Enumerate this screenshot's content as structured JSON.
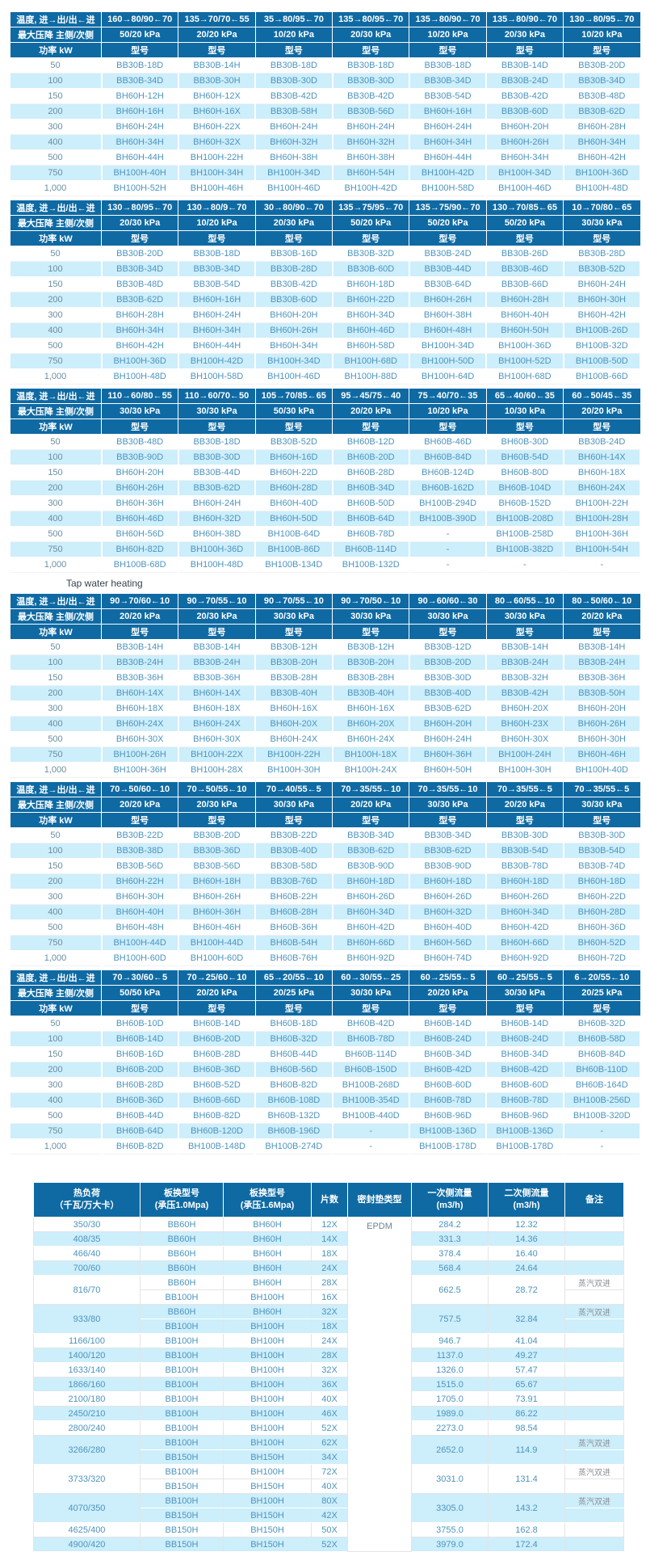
{
  "colors": {
    "header_bg": "#0f6aa3",
    "stripe": "#cdeefb",
    "model_text": "#4d94bd",
    "power_text": "#698ea2",
    "note_text": "#8b9196",
    "header_text": "#ffffff"
  },
  "labels": {
    "temp": "温度, 进→出/出←进",
    "pressure": "最大压降 主侧/次侧",
    "power": "功率 kW",
    "model": "型号",
    "tap_water": "Tap water heating"
  },
  "powers": [
    "50",
    "100",
    "150",
    "200",
    "300",
    "400",
    "500",
    "750",
    "1,000"
  ],
  "spec_tables": [
    {
      "temps": [
        "160→80/90←70",
        "135→70/70←55",
        "35→80/95←70",
        "135→80/95←70",
        "135→80/90←70",
        "135→80/90←70",
        "130→80/95←70"
      ],
      "pressures": [
        "50/20 kPa",
        "20/20 kPa",
        "10/20 kPa",
        "20/30 kPa",
        "10/20 kPa",
        "20/30 kPa",
        "10/20 kPa"
      ],
      "rows": [
        [
          "BB30B-18D",
          "BB30B-14H",
          "BB30B-18D",
          "BB30B-18D",
          "BB30B-18D",
          "BB30B-14D",
          "BB30B-20D"
        ],
        [
          "BB30B-34D",
          "BB30B-30H",
          "BB30B-30D",
          "BB30B-30D",
          "BB30B-34D",
          "BB30B-24D",
          "BB30B-34D"
        ],
        [
          "BH60H-12H",
          "BH60H-12X",
          "BB30B-42D",
          "BB30B-42D",
          "BB30B-54D",
          "BB30B-42D",
          "BB30B-48D"
        ],
        [
          "BH60H-16H",
          "BH60H-16X",
          "BB30B-58H",
          "BB30B-56D",
          "BH60H-16H",
          "BB30B-60D",
          "BB30B-62D"
        ],
        [
          "BH60H-24H",
          "BH60H-22X",
          "BH60H-24H",
          "BH60H-24H",
          "BH60H-24H",
          "BH60H-20H",
          "BH60H-28H"
        ],
        [
          "BH60H-34H",
          "BH60H-32X",
          "BH60H-32H",
          "BH60H-32H",
          "BH60H-34H",
          "BH60H-26H",
          "BH60H-34H"
        ],
        [
          "BH60H-44H",
          "BH100H-22H",
          "BH60H-38H",
          "BH60H-38H",
          "BH60H-44H",
          "BH60H-34H",
          "BH60H-42H"
        ],
        [
          "BH100H-40H",
          "BH100H-34H",
          "BH100H-34D",
          "BH60H-54H",
          "BH100H-42D",
          "BH100H-34D",
          "BH100H-36D"
        ],
        [
          "BH100H-52H",
          "BH100H-46H",
          "BH100H-46D",
          "BH100H-42D",
          "BH100H-58D",
          "BH100H-46D",
          "BH100H-48D"
        ]
      ]
    },
    {
      "temps": [
        "130→80/95←70",
        "130→80/9←70",
        "30→80/90←70",
        "135→75/95←70",
        "135→75/90←70",
        "130→70/85←65",
        "10→70/80←65"
      ],
      "pressures": [
        "20/30 kPa",
        "10/20 kPa",
        "20/30 kPa",
        "50/20 kPa",
        "50/20 kPa",
        "50/20 kPa",
        "30/30 kPa"
      ],
      "rows": [
        [
          "BB30B-20D",
          "BB30B-18D",
          "BB30B-16D",
          "BB30B-32D",
          "BB30B-24D",
          "BB30B-26D",
          "BB30B-28D"
        ],
        [
          "BB30B-34D",
          "BB30B-34D",
          "BB30B-28D",
          "BB30B-60D",
          "BB30B-44D",
          "BB30B-46D",
          "BB30B-52D"
        ],
        [
          "BB30B-48D",
          "BB30B-54D",
          "BB30B-42D",
          "BH60H-18D",
          "BB30B-64D",
          "BB30B-66D",
          "BH60H-24H"
        ],
        [
          "BB30B-62D",
          "BH60H-16H",
          "BB30B-60D",
          "BH60H-22D",
          "BH60H-26H",
          "BH60H-28H",
          "BH60H-30H"
        ],
        [
          "BH60H-28H",
          "BH60H-24H",
          "BH60H-20H",
          "BH60H-34D",
          "BH60H-38H",
          "BH60H-40H",
          "BH60H-42H"
        ],
        [
          "BH60H-34H",
          "BH60H-34H",
          "BH60H-26H",
          "BH60H-46D",
          "BH60H-48H",
          "BH60H-50H",
          "BH100B-26D"
        ],
        [
          "BH60H-42H",
          "BH60H-44H",
          "BH60H-34H",
          "BH60H-58D",
          "BH100H-34D",
          "BH100H-36D",
          "BH100B-32D"
        ],
        [
          "BH100H-36D",
          "BH100H-42D",
          "BH100H-34D",
          "BH100H-68D",
          "BH100H-50D",
          "BH100H-52D",
          "BH100B-50D"
        ],
        [
          "BH100H-48D",
          "BH100H-58D",
          "BH100H-46D",
          "BH100H-88D",
          "BH100H-64D",
          "BH100H-68D",
          "BH100B-66D"
        ]
      ]
    },
    {
      "temps": [
        "110→60/80←55",
        "110→60/70←50",
        "105→70/85←65",
        "95→45/75←40",
        "75→40/70←35",
        "65→40/60←35",
        "60→50/45←35"
      ],
      "pressures": [
        "30/30 kPa",
        "30/30 kPa",
        "50/30 kPa",
        "20/20 kPa",
        "10/20 kPa",
        "10/30 kPa",
        "20/20 kPa"
      ],
      "rows": [
        [
          "BB30B-48D",
          "BB30B-18D",
          "BB30B-52D",
          "BH60B-12D",
          "BH60B-46D",
          "BH60B-30D",
          "BB30B-24D"
        ],
        [
          "BB30B-90D",
          "BB30B-30D",
          "BH60H-16D",
          "BH60B-20D",
          "BH60B-84D",
          "BH60B-54D",
          "BH60H-14X"
        ],
        [
          "BH60H-20H",
          "BB30B-44D",
          "BH60H-22D",
          "BH60B-28D",
          "BH60B-124D",
          "BH60B-80D",
          "BH60H-18X"
        ],
        [
          "BH60H-26H",
          "BB30B-62D",
          "BH60H-28D",
          "BH60B-34D",
          "BH60B-162D",
          "BH60B-104D",
          "BH60H-24X"
        ],
        [
          "BH60H-36H",
          "BH60H-24H",
          "BH60H-40D",
          "BH60B-50D",
          "BH100B-294D",
          "BH60B-152D",
          "BH100H-22H"
        ],
        [
          "BH60H-46D",
          "BH60H-32D",
          "BH60H-50D",
          "BH60B-64D",
          "BH100B-390D",
          "BH100B-208D",
          "BH100H-28H"
        ],
        [
          "BH60H-56D",
          "BH60H-38D",
          "BH100B-64D",
          "BH60B-78D",
          "-",
          "BH100B-258D",
          "BH100H-36H"
        ],
        [
          "BH60H-82D",
          "BH100H-36D",
          "BH100B-86D",
          "BH60B-114D",
          "-",
          "BH100B-382D",
          "BH100H-54H"
        ],
        [
          "BH100B-68D",
          "BH100H-48D",
          "BH100B-134D",
          "BH100B-132D",
          "-",
          "-",
          "-"
        ]
      ]
    },
    {
      "temps": [
        "90→70/60←10",
        "90→70/55←10",
        "90→70/55←10",
        "90→70/50←10",
        "90→60/60←30",
        "80→60/55←10",
        "80→50/60←10"
      ],
      "pressures": [
        "20/20 kPa",
        "20/30 kPa",
        "30/30 kPa",
        "30/30 kPa",
        "30/30 kPa",
        "30/30 kPa",
        "20/20 kPa"
      ],
      "rows": [
        [
          "BB30B-14H",
          "BB30B-14H",
          "BB30B-12H",
          "BB30B-12H",
          "BB30B-12D",
          "BB30B-14H",
          "BB30B-14H"
        ],
        [
          "BB30B-24H",
          "BB30B-24H",
          "BB30B-20H",
          "BB30B-20H",
          "BB30B-20D",
          "BB30B-24H",
          "BB30B-24H"
        ],
        [
          "BB30B-36H",
          "BB30B-36H",
          "BB30B-28H",
          "BB30B-28H",
          "BB30B-30D",
          "BB30B-32H",
          "BB30B-36H"
        ],
        [
          "BH60H-14X",
          "BH60H-14X",
          "BB30B-40H",
          "BB30B-40H",
          "BB30B-40D",
          "BB30B-42H",
          "BB30B-50H"
        ],
        [
          "BH60H-18X",
          "BH60H-18X",
          "BH60H-16X",
          "BH60H-16X",
          "BB30B-62D",
          "BH60H-20X",
          "BH60H-20H"
        ],
        [
          "BH60H-24X",
          "BH60H-24X",
          "BH60H-20X",
          "BH60H-20X",
          "BH60H-20H",
          "BH60H-23X",
          "BH60H-26H"
        ],
        [
          "BH60H-30X",
          "BH60H-30X",
          "BH60H-24X",
          "BH60H-24X",
          "BH60H-24H",
          "BH60H-30X",
          "BH60H-30H"
        ],
        [
          "BH100H-26H",
          "BH100H-22X",
          "BH100H-22H",
          "BH100H-18X",
          "BH60H-36H",
          "BH100H-24H",
          "BH60H-46H"
        ],
        [
          "BH100H-36H",
          "BH100H-28X",
          "BH100H-30H",
          "BH100H-24X",
          "BH60H-50H",
          "BH100H-30H",
          "BH100H-40D"
        ]
      ]
    },
    {
      "temps": [
        "70→50/60←10",
        "70→50/55←10",
        "70→40/55←5",
        "70→35/55←10",
        "70→35/55←10",
        "70→35/55←5",
        "70→35/55←5"
      ],
      "pressures": [
        "20/20 kPa",
        "20/30 kPa",
        "30/30 kPa",
        "20/20 kPa",
        "30/30 kPa",
        "20/20 kPa",
        "30/30 kPa"
      ],
      "rows": [
        [
          "BB30B-22D",
          "BB30B-20D",
          "BB30B-22D",
          "BB30B-34D",
          "BB30B-34D",
          "BB30B-30D",
          "BB30B-30D"
        ],
        [
          "BB30B-38D",
          "BB30B-36D",
          "BB30B-40D",
          "BB30B-62D",
          "BB30B-62D",
          "BB30B-54D",
          "BB30B-54D"
        ],
        [
          "BB30B-56D",
          "BB30B-56D",
          "BB30B-58D",
          "BB30B-90D",
          "BB30B-90D",
          "BB30B-78D",
          "BB30B-74D"
        ],
        [
          "BH60H-22H",
          "BH60H-18H",
          "BB30B-76D",
          "BH60H-18D",
          "BH60H-18D",
          "BH60H-18D",
          "BH60H-18D"
        ],
        [
          "BH60H-30H",
          "BH60H-26H",
          "BH60B-22H",
          "BH60H-26D",
          "BH60H-26D",
          "BH60H-26D",
          "BH60H-22D"
        ],
        [
          "BH60H-40H",
          "BH60H-36H",
          "BH60B-28H",
          "BH60H-34D",
          "BH60H-32D",
          "BH60H-34D",
          "BH60H-28D"
        ],
        [
          "BH60H-48H",
          "BH60H-46H",
          "BH60B-36H",
          "BH60H-42D",
          "BH60H-40D",
          "BH60H-42D",
          "BH60H-36D"
        ],
        [
          "BH100H-44D",
          "BH100H-44D",
          "BH60B-54H",
          "BH60H-66D",
          "BH60H-56D",
          "BH60H-66D",
          "BH60H-52D"
        ],
        [
          "BH100H-60D",
          "BH100H-60D",
          "BH60B-76H",
          "BH60H-92D",
          "BH60H-74D",
          "BH60H-92D",
          "BH60H-72D"
        ]
      ]
    },
    {
      "temps": [
        "70→30/60←5",
        "70→25/60←10",
        "65→20/55←10",
        "60→30/55←25",
        "60→25/55←5",
        "60→25/55←5",
        "6→20/55←10"
      ],
      "pressures": [
        "50/50 kPa",
        "20/20 kPa",
        "20/25 kPa",
        "30/30 kPa",
        "20/20 kPa",
        "30/30 kPa",
        "20/25 kPa"
      ],
      "rows": [
        [
          "BH60B-10D",
          "BH60B-14D",
          "BH60B-18D",
          "BH60B-42D",
          "BH60B-14D",
          "BH60B-14D",
          "BH60B-32D"
        ],
        [
          "BH60B-14D",
          "BH60B-20D",
          "BH60B-32D",
          "BH60B-78D",
          "BH60B-24D",
          "BH60B-24D",
          "BH60B-58D"
        ],
        [
          "BH60B-16D",
          "BH60B-28D",
          "BH60B-44D",
          "BH60B-114D",
          "BH60B-34D",
          "BH60B-34D",
          "BH60B-84D"
        ],
        [
          "BH60B-20D",
          "BH60B-36D",
          "BH60B-56D",
          "BH60B-150D",
          "BH60B-42D",
          "BH60B-42D",
          "BH60B-110D"
        ],
        [
          "BH60B-28D",
          "BH60B-52D",
          "BH60B-82D",
          "BH100B-268D",
          "BH60B-60D",
          "BH60B-60D",
          "BH60B-164D"
        ],
        [
          "BH60B-36D",
          "BH60B-66D",
          "BH60B-108D",
          "BH100B-354D",
          "BH60B-78D",
          "BH60B-78D",
          "BH100B-256D"
        ],
        [
          "BH60B-44D",
          "BH60B-82D",
          "BH60B-132D",
          "BH100B-440D",
          "BH60B-96D",
          "BH60B-96D",
          "BH100B-320D"
        ],
        [
          "BH60B-64D",
          "BH60B-120D",
          "BH60B-196D",
          "-",
          "BH100B-136D",
          "BH100B-136D",
          "-"
        ],
        [
          "BH60B-82D",
          "BH100B-148D",
          "BH100B-274D",
          "-",
          "BH100B-178D",
          "BH100B-178D",
          "-"
        ]
      ]
    }
  ],
  "bottom_table": {
    "headers": [
      {
        "line1": "热负荷",
        "line2": "（千瓦/万大卡）"
      },
      {
        "line1": "板换型号",
        "line2": "(承压1.0Mpa)"
      },
      {
        "line1": "板换型号",
        "line2": "(承压1.6Mpa)"
      },
      {
        "line1": "片数",
        "line2": ""
      },
      {
        "line1": "密封垫类型",
        "line2": ""
      },
      {
        "line1": "一次侧流量",
        "line2": "(m3/h)"
      },
      {
        "line1": "二次侧流量",
        "line2": "(m3/h)"
      },
      {
        "line1": "备注",
        "line2": ""
      }
    ],
    "gasket_type": "EPDM",
    "rows": [
      {
        "load": "350/30",
        "models": [
          [
            "BB60H",
            "BH60H",
            "12X"
          ]
        ],
        "primary_flow": "284.2",
        "secondary_flow": "12.32",
        "note": ""
      },
      {
        "load": "408/35",
        "models": [
          [
            "BB60H",
            "BH60H",
            "14X"
          ]
        ],
        "primary_flow": "331.3",
        "secondary_flow": "14.36",
        "note": ""
      },
      {
        "load": "466/40",
        "models": [
          [
            "BB60H",
            "BH60H",
            "18X"
          ]
        ],
        "primary_flow": "378.4",
        "secondary_flow": "16.40",
        "note": ""
      },
      {
        "load": "700/60",
        "models": [
          [
            "BB60H",
            "BH60H",
            "24X"
          ]
        ],
        "primary_flow": "568.4",
        "secondary_flow": "24.64",
        "note": ""
      },
      {
        "load": "816/70",
        "models": [
          [
            "BB60H",
            "BH60H",
            "28X"
          ],
          [
            "BB100H",
            "BH100H",
            "16X"
          ]
        ],
        "primary_flow": "662.5",
        "secondary_flow": "28.72",
        "note": "蒸汽双进"
      },
      {
        "load": "933/80",
        "models": [
          [
            "BB60H",
            "BH60H",
            "32X"
          ],
          [
            "BB100H",
            "BH100H",
            "18X"
          ]
        ],
        "primary_flow": "757.5",
        "secondary_flow": "32.84",
        "note": "蒸汽双进"
      },
      {
        "load": "1166/100",
        "models": [
          [
            "BB100H",
            "BH100H",
            "24X"
          ]
        ],
        "primary_flow": "946.7",
        "secondary_flow": "41.04",
        "note": ""
      },
      {
        "load": "1400/120",
        "models": [
          [
            "BB100H",
            "BH100H",
            "28X"
          ]
        ],
        "primary_flow": "1137.0",
        "secondary_flow": "49.27",
        "note": ""
      },
      {
        "load": "1633/140",
        "models": [
          [
            "BB100H",
            "BH100H",
            "32X"
          ]
        ],
        "primary_flow": "1326.0",
        "secondary_flow": "57.47",
        "note": ""
      },
      {
        "load": "1866/160",
        "models": [
          [
            "BB100H",
            "BH100H",
            "36X"
          ]
        ],
        "primary_flow": "1515.0",
        "secondary_flow": "65.67",
        "note": ""
      },
      {
        "load": "2100/180",
        "models": [
          [
            "BB100H",
            "BH100H",
            "40X"
          ]
        ],
        "primary_flow": "1705.0",
        "secondary_flow": "73.91",
        "note": ""
      },
      {
        "load": "2450/210",
        "models": [
          [
            "BB100H",
            "BH100H",
            "46X"
          ]
        ],
        "primary_flow": "1989.0",
        "secondary_flow": "86.22",
        "note": ""
      },
      {
        "load": "2800/240",
        "models": [
          [
            "BB100H",
            "BH100H",
            "52X"
          ]
        ],
        "primary_flow": "2273.0",
        "secondary_flow": "98.54",
        "note": ""
      },
      {
        "load": "3266/280",
        "models": [
          [
            "BB100H",
            "BH100H",
            "62X"
          ],
          [
            "BB150H",
            "BH150H",
            "34X"
          ]
        ],
        "primary_flow": "2652.0",
        "secondary_flow": "114.9",
        "note": "蒸汽双进"
      },
      {
        "load": "3733/320",
        "models": [
          [
            "BB100H",
            "BH100H",
            "72X"
          ],
          [
            "BB150H",
            "BH150H",
            "40X"
          ]
        ],
        "primary_flow": "3031.0",
        "secondary_flow": "131.4",
        "note": "蒸汽双进"
      },
      {
        "load": "4070/350",
        "models": [
          [
            "BB100H",
            "BH100H",
            "80X"
          ],
          [
            "BB150H",
            "BH150H",
            "42X"
          ]
        ],
        "primary_flow": "3305.0",
        "secondary_flow": "143.2",
        "note": "蒸汽双进"
      },
      {
        "load": "4625/400",
        "models": [
          [
            "BB150H",
            "BH150H",
            "50X"
          ]
        ],
        "primary_flow": "3755.0",
        "secondary_flow": "162.8",
        "note": ""
      },
      {
        "load": "4900/420",
        "models": [
          [
            "BB150H",
            "BH150H",
            "52X"
          ]
        ],
        "primary_flow": "3979.0",
        "secondary_flow": "172.4",
        "note": ""
      }
    ]
  }
}
